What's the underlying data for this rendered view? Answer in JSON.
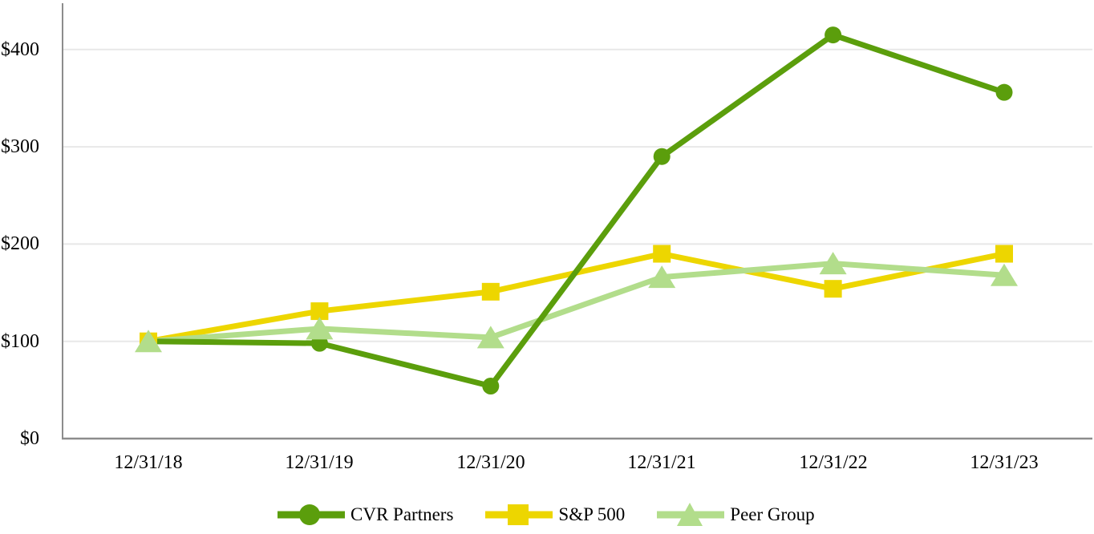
{
  "chart_data": {
    "type": "line",
    "title": "",
    "x_labels": [
      "12/31/18",
      "12/31/19",
      "12/31/20",
      "12/31/21",
      "12/31/22",
      "12/31/23"
    ],
    "y_tick_labels": [
      "$400",
      "$300",
      "$200",
      "$100",
      "$0"
    ],
    "y_tick_values": [
      400,
      300,
      200,
      100,
      0
    ],
    "ylim": [
      0,
      447
    ],
    "grid": "horizontal",
    "grid_color": "#E8E8E8",
    "axis_color": "#8C8C8C",
    "legend_position": "bottom",
    "series": [
      {
        "name": "CVR Partners",
        "marker": "circle",
        "color": "#5B9E0C",
        "values": [
          100,
          98,
          54,
          290,
          415,
          356
        ]
      },
      {
        "name": "S&P 500",
        "marker": "square",
        "color": "#EDD600",
        "values": [
          100,
          131,
          151,
          190,
          154,
          190
        ]
      },
      {
        "name": "Peer Group",
        "marker": "triangle",
        "color": "#B2DD8B",
        "values": [
          100,
          113,
          104,
          166,
          180,
          168
        ]
      }
    ]
  }
}
